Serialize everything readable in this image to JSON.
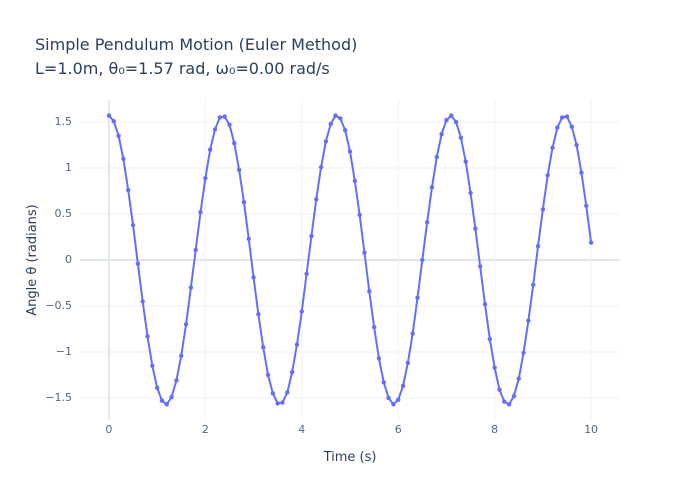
{
  "chart_data": {
    "type": "line",
    "title": "Simple Pendulum Motion (Euler Method)",
    "subtitle": "L=1.0m, θ₀=1.57 rad, ω₀=0.00 rad/s",
    "xlabel": "Time (s)",
    "ylabel": "Angle θ (radians)",
    "x": [
      0,
      0.1,
      0.2,
      0.3,
      0.4,
      0.5,
      0.6,
      0.7,
      0.8,
      0.9,
      1,
      1.1,
      1.2,
      1.3,
      1.4,
      1.5,
      1.6,
      1.7,
      1.8,
      1.9,
      2,
      2.1,
      2.2,
      2.3,
      2.4,
      2.5,
      2.6,
      2.7,
      2.8,
      2.9,
      3,
      3.1,
      3.2,
      3.3,
      3.4,
      3.5,
      3.6,
      3.7,
      3.8,
      3.9,
      4,
      4.1,
      4.2,
      4.3,
      4.4,
      4.5,
      4.6,
      4.7,
      4.8,
      4.9,
      5,
      5.1,
      5.2,
      5.3,
      5.4,
      5.5,
      5.6,
      5.7,
      5.8,
      5.9,
      6,
      6.1,
      6.2,
      6.3,
      6.4,
      6.5,
      6.6,
      6.7,
      6.8,
      6.9,
      7,
      7.1,
      7.2,
      7.3,
      7.4,
      7.5,
      7.6,
      7.7,
      7.8,
      7.9,
      8,
      8.1,
      8.2,
      8.3,
      8.4,
      8.5,
      8.6,
      8.7,
      8.8,
      8.9,
      9,
      9.1,
      9.2,
      9.3,
      9.4,
      9.5,
      9.6,
      9.7,
      9.8,
      9.9,
      10
    ],
    "series": [
      {
        "color": "#636efa",
        "values": [
          1.57,
          1.51,
          1.35,
          1.1,
          0.76,
          0.38,
          -0.04,
          -0.45,
          -0.83,
          -1.15,
          -1.39,
          -1.53,
          -1.57,
          -1.49,
          -1.31,
          -1.04,
          -0.7,
          -0.3,
          0.11,
          0.52,
          0.89,
          1.2,
          1.42,
          1.55,
          1.56,
          1.47,
          1.27,
          0.98,
          0.63,
          0.23,
          -0.19,
          -0.59,
          -0.95,
          -1.25,
          -1.45,
          -1.56,
          -1.55,
          -1.44,
          -1.22,
          -0.92,
          -0.56,
          -0.15,
          0.26,
          0.66,
          1.01,
          1.29,
          1.48,
          1.57,
          1.54,
          1.41,
          1.18,
          0.86,
          0.49,
          0.08,
          -0.34,
          -0.73,
          -1.07,
          -1.33,
          -1.5,
          -1.57,
          -1.52,
          -1.37,
          -1.12,
          -0.8,
          -0.41,
          0.0,
          0.41,
          0.79,
          1.12,
          1.37,
          1.52,
          1.57,
          1.5,
          1.33,
          1.07,
          0.73,
          0.34,
          -0.07,
          -0.48,
          -0.86,
          -1.17,
          -1.41,
          -1.54,
          -1.57,
          -1.48,
          -1.29,
          -1.01,
          -0.66,
          -0.27,
          0.15,
          0.55,
          0.92,
          1.22,
          1.44,
          1.55,
          1.56,
          1.45,
          1.25,
          0.95,
          0.59,
          0.19
        ]
      }
    ],
    "xlim": [
      -0.6,
      10.6
    ],
    "xticks": [
      0,
      2,
      4,
      6,
      8,
      10
    ],
    "ylim": [
      -1.74,
      1.74
    ],
    "yticks": [
      {
        "value": -1.5,
        "label": "−1.5"
      },
      {
        "value": -1,
        "label": "−1"
      },
      {
        "value": -0.5,
        "label": "−0.5"
      },
      0,
      0.5,
      1,
      1.5
    ],
    "grid": true
  }
}
